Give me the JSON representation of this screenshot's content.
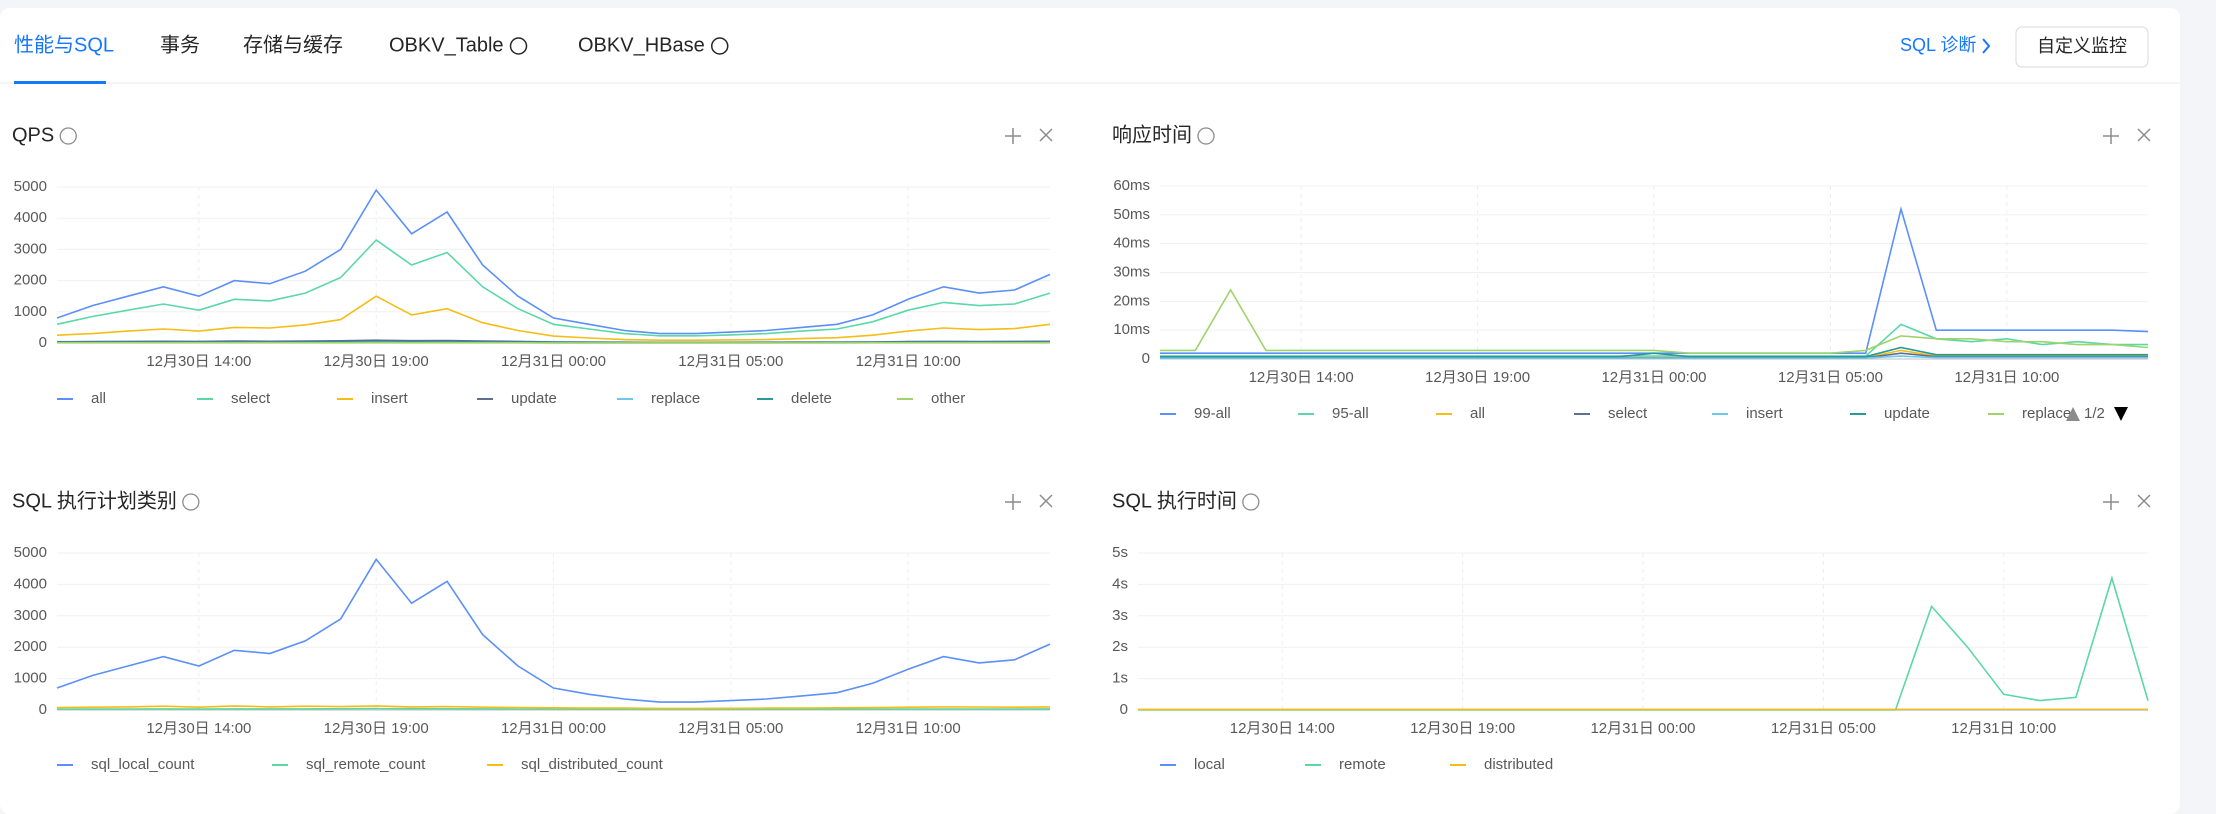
{
  "tabs": [
    "性能与SQL",
    "事务",
    "存储与缓存",
    "OBKV_Table",
    "OBKV_HBase"
  ],
  "sql_diagnosis": "SQL 诊断",
  "custom_monitor": "自定义监控",
  "chart_data": [
    {
      "type": "line",
      "title": "QPS",
      "categories": [
        null,
        null,
        null,
        null,
        "12月30日 14:00",
        null,
        null,
        null,
        null,
        "12月30日 19:00",
        null,
        null,
        null,
        null,
        "12月31日 00:00",
        null,
        null,
        null,
        null,
        "12月31日 05:00",
        null,
        null,
        null,
        null,
        "12月31日 10:00",
        null,
        null,
        null,
        null
      ],
      "ylim": [
        0,
        5000
      ],
      "yticks": [
        0,
        1000,
        2000,
        3000,
        4000,
        5000
      ],
      "grid": true,
      "series": [
        {
          "name": "all",
          "color": "#5b8ff9",
          "values": [
            800,
            1200,
            1500,
            1800,
            1500,
            2000,
            1900,
            2300,
            3000,
            4900,
            3500,
            4200,
            2500,
            1500,
            800,
            600,
            400,
            300,
            300,
            350,
            400,
            500,
            600,
            900,
            1400,
            1800,
            1600,
            1700,
            2200
          ]
        },
        {
          "name": "select",
          "color": "#5ad8a6",
          "values": [
            600,
            850,
            1050,
            1250,
            1050,
            1400,
            1350,
            1600,
            2100,
            3300,
            2500,
            2900,
            1800,
            1100,
            600,
            450,
            300,
            230,
            230,
            260,
            300,
            380,
            450,
            680,
            1050,
            1300,
            1200,
            1250,
            1600
          ]
        },
        {
          "name": "insert",
          "color": "#f6bd16",
          "values": [
            250,
            300,
            380,
            450,
            380,
            500,
            480,
            580,
            750,
            1500,
            900,
            1100,
            650,
            400,
            220,
            160,
            110,
            90,
            90,
            100,
            110,
            140,
            170,
            250,
            380,
            480,
            430,
            460,
            600
          ]
        },
        {
          "name": "update",
          "color": "#5d7092",
          "values": [
            40,
            45,
            50,
            55,
            50,
            60,
            55,
            60,
            70,
            90,
            75,
            80,
            60,
            50,
            35,
            30,
            25,
            20,
            20,
            22,
            25,
            28,
            30,
            35,
            45,
            50,
            48,
            50,
            55
          ]
        },
        {
          "name": "replace",
          "color": "#6dc8ec",
          "values": [
            10,
            10,
            12,
            10,
            10,
            12,
            10,
            10,
            12,
            14,
            12,
            12,
            10,
            10,
            8,
            8,
            8,
            8,
            8,
            8,
            8,
            10,
            10,
            10,
            10,
            12,
            10,
            10,
            12
          ]
        },
        {
          "name": "delete",
          "color": "#269a99",
          "values": [
            20,
            20,
            22,
            24,
            20,
            25,
            24,
            26,
            30,
            35,
            30,
            32,
            26,
            22,
            18,
            16,
            14,
            12,
            12,
            12,
            14,
            15,
            16,
            18,
            20,
            22,
            21,
            22,
            24
          ]
        },
        {
          "name": "other",
          "color": "#9fd36b",
          "values": [
            5,
            5,
            5,
            6,
            5,
            6,
            6,
            6,
            7,
            8,
            7,
            7,
            6,
            5,
            4,
            4,
            4,
            3,
            3,
            3,
            4,
            4,
            4,
            5,
            5,
            6,
            5,
            5,
            6
          ]
        }
      ]
    },
    {
      "type": "line",
      "title": "响应时间",
      "legend_page": "1/2",
      "categories": [
        null,
        null,
        null,
        null,
        "12月30日 14:00",
        null,
        null,
        null,
        null,
        "12月30日 19:00",
        null,
        null,
        null,
        null,
        "12月31日 00:00",
        null,
        null,
        null,
        null,
        "12月31日 05:00",
        null,
        null,
        null,
        null,
        "12月31日 10:00",
        null,
        null,
        null,
        null
      ],
      "ylim": [
        0,
        60
      ],
      "yticks": [
        0,
        {
          "value": 10,
          "label": "10ms"
        },
        {
          "value": 20,
          "label": "20ms"
        },
        {
          "value": 30,
          "label": "30ms"
        },
        {
          "value": 40,
          "label": "40ms"
        },
        {
          "value": 50,
          "label": "50ms"
        },
        {
          "value": 60,
          "label": "60ms"
        }
      ],
      "grid": true,
      "series": [
        {
          "name": "99-all",
          "color": "#5b8ff9",
          "values": [
            2,
            2,
            2,
            2,
            2,
            2,
            2,
            2,
            2,
            2,
            2,
            2,
            2,
            2,
            2,
            2,
            2,
            2,
            2,
            2,
            2,
            52,
            10,
            10,
            10,
            10,
            10,
            10,
            9.5
          ]
        },
        {
          "name": "95-all",
          "color": "#5ad8a6",
          "values": [
            1,
            1,
            1,
            1,
            1,
            1,
            1,
            1,
            1,
            1,
            1,
            1,
            1,
            1,
            1,
            1,
            1,
            1,
            1,
            1,
            1,
            12,
            7,
            6,
            7,
            5,
            6,
            5,
            5
          ]
        },
        {
          "name": "all",
          "color": "#f6bd16",
          "values": [
            0.5,
            0.5,
            0.5,
            0.5,
            0.5,
            0.5,
            0.5,
            0.5,
            0.5,
            0.5,
            0.5,
            0.5,
            0.5,
            0.5,
            0.5,
            0.5,
            0.5,
            0.5,
            0.5,
            0.5,
            0.5,
            3,
            1,
            1,
            1,
            1,
            1,
            1,
            1
          ]
        },
        {
          "name": "select",
          "color": "#5d7092",
          "values": [
            0.4,
            0.4,
            0.4,
            0.4,
            0.4,
            0.4,
            0.4,
            0.4,
            0.4,
            0.4,
            0.4,
            0.4,
            0.4,
            0.4,
            0.4,
            0.4,
            0.4,
            0.4,
            0.4,
            0.4,
            0.4,
            2,
            0.8,
            0.8,
            0.8,
            0.8,
            0.8,
            0.8,
            0.8
          ]
        },
        {
          "name": "insert",
          "color": "#6dc8ec",
          "values": [
            0.3,
            0.3,
            0.3,
            0.3,
            0.3,
            0.3,
            0.3,
            0.3,
            0.3,
            0.3,
            0.3,
            0.3,
            0.3,
            0.3,
            0.3,
            0.3,
            0.3,
            0.3,
            0.3,
            0.3,
            0.3,
            1,
            0.5,
            0.5,
            0.5,
            0.5,
            0.5,
            0.5,
            0.5
          ]
        },
        {
          "name": "update",
          "color": "#269a99",
          "values": [
            0.8,
            0.8,
            0.8,
            0.8,
            0.8,
            0.8,
            0.8,
            0.8,
            0.8,
            0.8,
            0.8,
            0.8,
            0.8,
            0.8,
            2,
            0.8,
            0.8,
            0.8,
            0.8,
            0.8,
            0.8,
            4,
            1.5,
            1.5,
            1.5,
            1.5,
            1.5,
            1.5,
            1.5
          ]
        },
        {
          "name": "replace",
          "color": "#9fd36b",
          "values": [
            3,
            3,
            24,
            3,
            3,
            3,
            3,
            3,
            3,
            3,
            3,
            3,
            3,
            3,
            3,
            2,
            2,
            2,
            2,
            2,
            3,
            8,
            7,
            7,
            6,
            6,
            5,
            5,
            4
          ]
        }
      ]
    },
    {
      "type": "line",
      "title": "SQL 执行计划类别",
      "categories": [
        null,
        null,
        null,
        null,
        "12月30日 14:00",
        null,
        null,
        null,
        null,
        "12月30日 19:00",
        null,
        null,
        null,
        null,
        "12月31日 00:00",
        null,
        null,
        null,
        null,
        "12月31日 05:00",
        null,
        null,
        null,
        null,
        "12月31日 10:00",
        null,
        null,
        null,
        null
      ],
      "ylim": [
        0,
        5000
      ],
      "yticks": [
        0,
        1000,
        2000,
        3000,
        4000,
        5000
      ],
      "grid": true,
      "series": [
        {
          "name": "sql_local_count",
          "color": "#5b8ff9",
          "values": [
            700,
            1100,
            1400,
            1700,
            1400,
            1900,
            1800,
            2200,
            2900,
            4800,
            3400,
            4100,
            2400,
            1400,
            700,
            500,
            350,
            250,
            250,
            300,
            350,
            450,
            550,
            850,
            1300,
            1700,
            1500,
            1600,
            2100
          ]
        },
        {
          "name": "sql_remote_count",
          "color": "#5ad8a6",
          "values": [
            30,
            30,
            32,
            34,
            30,
            35,
            34,
            36,
            40,
            45,
            40,
            42,
            36,
            32,
            28,
            26,
            24,
            22,
            22,
            22,
            24,
            25,
            26,
            28,
            30,
            32,
            31,
            32,
            34
          ]
        },
        {
          "name": "sql_distributed_count",
          "color": "#f6bd16",
          "values": [
            80,
            90,
            100,
            120,
            90,
            130,
            100,
            120,
            110,
            130,
            100,
            110,
            90,
            80,
            70,
            60,
            60,
            50,
            50,
            55,
            60,
            65,
            70,
            75,
            90,
            100,
            95,
            90,
            100
          ]
        }
      ]
    },
    {
      "type": "line",
      "title": "SQL 执行时间",
      "categories": [
        null,
        null,
        null,
        null,
        "12月30日 14:00",
        null,
        null,
        null,
        null,
        "12月30日 19:00",
        null,
        null,
        null,
        null,
        "12月31日 00:00",
        null,
        null,
        null,
        null,
        "12月31日 05:00",
        null,
        null,
        null,
        null,
        "12月31日 10:00",
        null,
        null,
        null,
        null
      ],
      "ylim": [
        0,
        5
      ],
      "yticks": [
        0,
        {
          "value": 1,
          "label": "1s"
        },
        {
          "value": 2,
          "label": "2s"
        },
        {
          "value": 3,
          "label": "3s"
        },
        {
          "value": 4,
          "label": "4s"
        },
        {
          "value": 5,
          "label": "5s"
        }
      ],
      "grid": true,
      "series": [
        {
          "name": "local",
          "color": "#5b8ff9",
          "values": [
            0.01,
            0.01,
            0.01,
            0.01,
            0.01,
            0.01,
            0.01,
            0.01,
            0.01,
            0.01,
            0.01,
            0.01,
            0.01,
            0.01,
            0.01,
            0.01,
            0.01,
            0.01,
            0.01,
            0.01,
            0.01,
            0.01,
            0.01,
            0.01,
            0.01,
            0.01,
            0.01,
            0.01,
            0.01
          ]
        },
        {
          "name": "remote",
          "color": "#5ad8a6",
          "values": [
            0,
            0,
            0,
            0,
            0,
            0,
            0,
            0,
            0,
            0,
            0,
            0,
            0,
            0,
            0,
            0,
            0,
            0,
            0,
            0,
            0,
            0,
            3.3,
            2,
            0.5,
            0.3,
            0.4,
            4.2,
            0.3
          ]
        },
        {
          "name": "distributed",
          "color": "#f6bd16",
          "values": [
            0.02,
            0.02,
            0.02,
            0.02,
            0.02,
            0.02,
            0.02,
            0.02,
            0.02,
            0.02,
            0.02,
            0.02,
            0.02,
            0.02,
            0.02,
            0.02,
            0.02,
            0.02,
            0.02,
            0.02,
            0.02,
            0.02,
            0.02,
            0.02,
            0.02,
            0.02,
            0.02,
            0.02,
            0.02
          ]
        }
      ]
    }
  ]
}
